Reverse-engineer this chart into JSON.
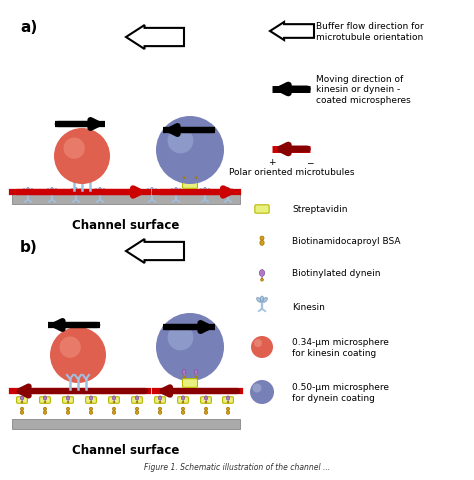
{
  "panel_a_label": "a)",
  "panel_b_label": "b)",
  "channel_surface_label": "Channel surface",
  "bg_color": "#ffffff",
  "sphere_red_color": "#e06050",
  "sphere_blue_color": "#7880b8",
  "microtubule_color": "#cc0000",
  "surface_color": "#aaaaaa",
  "kinesin_color": "#a0c0e0",
  "streptavidin_color": "#e8f080",
  "dynein_color": "#b07ac4",
  "bsa_color": "#d4a017",
  "legend_buf_label": "Buffer flow direction for\nmicrotubule orientation",
  "legend_mov_label": "Moving direction of\nkinesin or dynein -\ncoated microspheres",
  "legend_mt_label": "Polar oriented microtubules",
  "legend_strep": "Streptavidin",
  "legend_bsa": "Biotinamidocaproyl BSA",
  "legend_dyn": "Biotinylated dynein",
  "legend_kin": "Kinesin",
  "legend_red_ms": "0.34-μm microsphere\nfor kinesin coating",
  "legend_blue_ms": "0.50-μm microsphere\nfor dynein coating"
}
